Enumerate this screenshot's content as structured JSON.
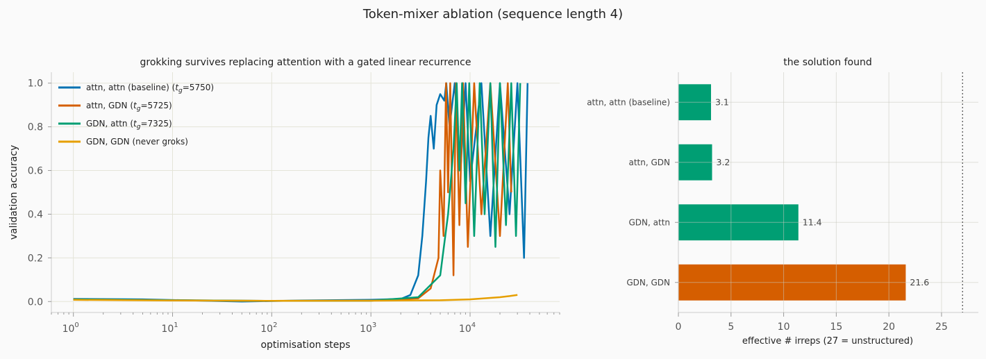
{
  "figure": {
    "title": "Token-mixer ablation (sequence length 4)"
  },
  "chart_data": [
    {
      "type": "line",
      "title": "grokking survives replacing attention with a gated linear recurrence",
      "xlabel": "optimisation steps",
      "ylabel": "validation accuracy",
      "xscale": "log",
      "xlim": [
        0.6,
        80000
      ],
      "ylim": [
        -0.05,
        1.05
      ],
      "xticks": [
        {
          "value": 1,
          "base": "10",
          "exp": "0"
        },
        {
          "value": 10,
          "base": "10",
          "exp": "1"
        },
        {
          "value": 100,
          "base": "10",
          "exp": "2"
        },
        {
          "value": 1000,
          "base": "10",
          "exp": "3"
        },
        {
          "value": 10000,
          "base": "10",
          "exp": "4"
        }
      ],
      "yticks": [
        "0.0",
        "0.2",
        "0.4",
        "0.6",
        "0.8",
        "1.0"
      ],
      "grid": true,
      "legend_position": "top-left",
      "series": [
        {
          "name": "attn, attn  (baseline)",
          "legend_prefix": "attn, attn  (baseline)  (",
          "legend_t": "t",
          "legend_sub": "g",
          "legend_suffix": "=5750)",
          "color": "#0072B2",
          "x": [
            1,
            5,
            50,
            200,
            1000,
            2000,
            2500,
            3000,
            3300,
            3600,
            3800,
            4000,
            4300,
            4600,
            5000,
            5500,
            5750,
            6200,
            7000,
            8000,
            9000,
            10000,
            13000,
            16000,
            20000,
            25000,
            30000,
            35000,
            38000
          ],
          "y": [
            0.012,
            0.01,
            0.0,
            0.005,
            0.008,
            0.012,
            0.03,
            0.12,
            0.3,
            0.55,
            0.75,
            0.85,
            0.7,
            0.9,
            0.95,
            0.92,
            1.0,
            0.8,
            1.0,
            0.6,
            1.0,
            0.55,
            1.0,
            0.3,
            1.0,
            0.4,
            1.0,
            0.2,
            1.0
          ]
        },
        {
          "name": "attn, GDN",
          "legend_prefix": "attn, GDN  (",
          "legend_t": "t",
          "legend_sub": "g",
          "legend_suffix": "=5725)",
          "color": "#D55E00",
          "x": [
            1,
            10,
            100,
            1000,
            3000,
            4000,
            4800,
            5000,
            5400,
            5725,
            6000,
            6300,
            6800,
            7200,
            7800,
            8500,
            9500,
            11000,
            13000,
            16000,
            20000,
            24000,
            26000
          ],
          "y": [
            0.01,
            0.006,
            0.003,
            0.004,
            0.015,
            0.06,
            0.2,
            0.6,
            0.3,
            1.0,
            0.5,
            1.0,
            0.12,
            1.0,
            0.35,
            1.0,
            0.25,
            1.0,
            0.4,
            1.0,
            0.3,
            1.0,
            0.5
          ]
        },
        {
          "name": "GDN, attn",
          "legend_prefix": "GDN, attn  (",
          "legend_t": "t",
          "legend_sub": "g",
          "legend_suffix": "=7325)",
          "color": "#009E73",
          "x": [
            1,
            10,
            100,
            1000,
            3000,
            5000,
            6000,
            6800,
            7325,
            7800,
            8300,
            9000,
            9800,
            11000,
            12500,
            14000,
            16000,
            18000,
            20000,
            23000,
            26000,
            29000,
            32000
          ],
          "y": [
            0.01,
            0.006,
            0.003,
            0.004,
            0.02,
            0.12,
            0.4,
            0.7,
            1.0,
            0.6,
            1.0,
            0.45,
            1.0,
            0.3,
            1.0,
            0.4,
            1.0,
            0.25,
            1.0,
            0.35,
            1.0,
            0.3,
            1.0
          ]
        },
        {
          "name": "GDN, GDN  (never groks)",
          "legend_prefix": "GDN, GDN  (never groks)",
          "legend_t": "",
          "legend_sub": "",
          "legend_suffix": "",
          "color": "#E69F00",
          "x": [
            1,
            10,
            100,
            1000,
            5000,
            10000,
            20000,
            25000,
            30000
          ],
          "y": [
            0.008,
            0.005,
            0.003,
            0.004,
            0.006,
            0.01,
            0.02,
            0.025,
            0.03
          ]
        }
      ]
    },
    {
      "type": "bar",
      "orientation": "horizontal",
      "title": "the solution found",
      "xlabel": "effective # irreps (27 = unstructured)",
      "xlim": [
        0,
        28.5
      ],
      "xticks": [
        "0",
        "5",
        "10",
        "15",
        "20",
        "25"
      ],
      "reference_line": 27,
      "grid": true,
      "categories": [
        "attn, attn  (baseline)",
        "attn, GDN",
        "GDN, attn",
        "GDN, GDN"
      ],
      "values": [
        3.1,
        3.2,
        11.4,
        21.6
      ],
      "value_labels": [
        "3.1",
        "3.2",
        "11.4",
        "21.6"
      ],
      "colors": [
        "#009E73",
        "#009E73",
        "#009E73",
        "#D55E00"
      ]
    }
  ]
}
